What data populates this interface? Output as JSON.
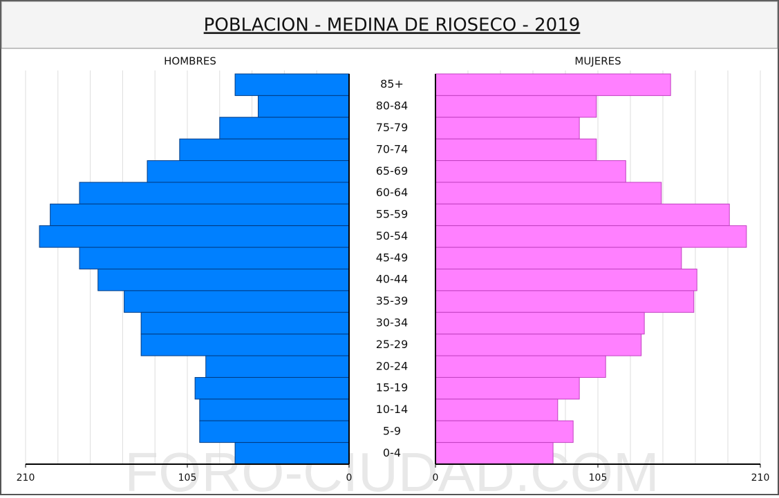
{
  "chart_data": {
    "type": "pyramid",
    "title": "POBLACION - MEDINA DE RIOSECO - 2019",
    "watermark": "FORO-CIUDAD.COM",
    "categories": [
      "85+",
      "80-84",
      "75-79",
      "70-74",
      "65-69",
      "60-64",
      "55-59",
      "50-54",
      "45-49",
      "40-44",
      "35-39",
      "30-34",
      "25-29",
      "20-24",
      "15-19",
      "10-14",
      "5-9",
      "0-4"
    ],
    "series": [
      {
        "name": "HOMBRES",
        "color": "#0080ff",
        "values": [
          74,
          59,
          84,
          110,
          131,
          175,
          194,
          201,
          175,
          163,
          146,
          135,
          135,
          93,
          100,
          97,
          97,
          74
        ]
      },
      {
        "name": "MUJERES",
        "color": "#ff80ff",
        "values": [
          152,
          104,
          93,
          104,
          123,
          146,
          190,
          201,
          159,
          169,
          167,
          135,
          133,
          110,
          93,
          79,
          89,
          76
        ]
      }
    ],
    "xlim": [
      0,
      210
    ],
    "xticks": [
      0,
      105,
      210
    ],
    "grid": true
  }
}
